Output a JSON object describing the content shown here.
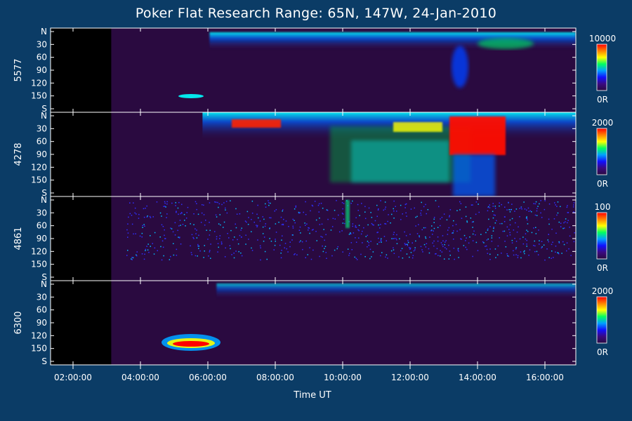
{
  "title": "Poker Flat Research Range: 65N, 147W, 24-Jan-2010",
  "xlabel": "Time UT",
  "x_ticks": [
    "02:00:00",
    "04:00:00",
    "06:00:00",
    "08:00:00",
    "10:00:00",
    "12:00:00",
    "14:00:00",
    "16:00:00"
  ],
  "y_ticks": [
    "N",
    "30",
    "60",
    "90",
    "120",
    "150",
    "S"
  ],
  "colors": {
    "background": "#0b3c66",
    "panel_fill": "#2a0a40",
    "no_data": "#000000",
    "frame": "#ffffff"
  },
  "chart_data": {
    "type": "heatmap",
    "title": "Poker Flat Research Range: 65N, 147W, 24-Jan-2010",
    "xlabel": "Time UT",
    "x_axis": {
      "min": "01:20:00",
      "max": "16:55:00",
      "ticks": [
        "02:00:00",
        "04:00:00",
        "06:00:00",
        "08:00:00",
        "10:00:00",
        "12:00:00",
        "14:00:00",
        "16:00:00"
      ]
    },
    "y_axis": {
      "labels": [
        "N",
        "30",
        "60",
        "90",
        "120",
        "150",
        "S"
      ],
      "range_deg": [
        0,
        180
      ]
    },
    "data_start": "03:08:00",
    "panels": [
      {
        "wavelength": "5577",
        "colorbar_max": "10000",
        "colorbar_min": "0R"
      },
      {
        "wavelength": "4278",
        "colorbar_max": "2000",
        "colorbar_min": "0R"
      },
      {
        "wavelength": "4861",
        "colorbar_max": "100",
        "colorbar_min": "0R"
      },
      {
        "wavelength": "6300",
        "colorbar_max": "2000",
        "colorbar_min": "0R"
      }
    ],
    "colormap": [
      "#2a0a40",
      "#3a0a80",
      "#1010ff",
      "#00a0ff",
      "#00ff60",
      "#ffff00",
      "#ff8000",
      "#ff0000"
    ]
  }
}
